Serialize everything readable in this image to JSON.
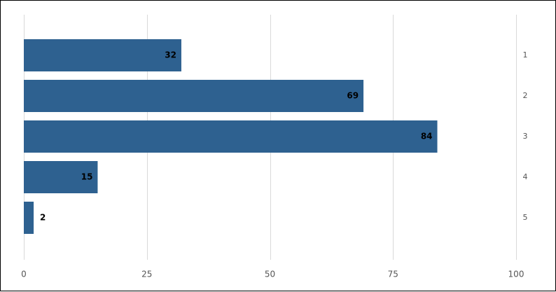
{
  "chart_data": {
    "type": "bar",
    "orientation": "horizontal",
    "categories": [
      "1",
      "2",
      "3",
      "4",
      "5"
    ],
    "values": [
      32,
      69,
      84,
      15,
      2
    ],
    "xlim": [
      0,
      100
    ],
    "x_ticks": [
      "0",
      "25",
      "50",
      "75",
      "100"
    ],
    "category_axis_side": "right",
    "grid": true,
    "data_labels": true,
    "title": "",
    "xlabel": "",
    "ylabel": "",
    "bar_color": "#2e6190"
  }
}
